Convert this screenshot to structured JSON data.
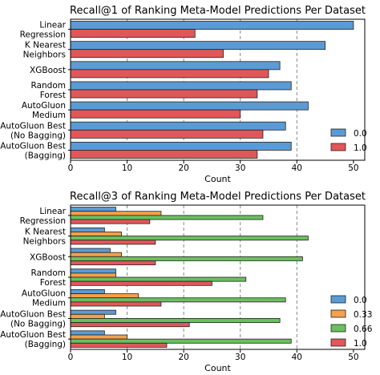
{
  "chart_data": [
    {
      "type": "bar",
      "orientation": "horizontal",
      "title": "Recall@1 of Ranking Meta-Model Predictions Per Dataset",
      "xlabel": "Count",
      "ylabel": "",
      "xlim": [
        0,
        52
      ],
      "xticks": [
        0,
        10,
        20,
        30,
        40,
        50
      ],
      "grid": "x dashed at 10,20,30,40",
      "legend_position": "lower-right",
      "categories": [
        [
          "Linear",
          "Regression"
        ],
        [
          "K Nearest",
          "Neighbors"
        ],
        [
          "XGBoost"
        ],
        [
          "Random",
          "Forest"
        ],
        [
          "AutoGluon",
          "Medium"
        ],
        [
          "AutoGluon Best",
          "(No Bagging)"
        ],
        [
          "AutoGluon Best",
          "(Bagging)"
        ]
      ],
      "series": [
        {
          "name": "0.0",
          "color": "#5b9bd5",
          "values": [
            50,
            45,
            37,
            39,
            42,
            38,
            39
          ]
        },
        {
          "name": "1.0",
          "color": "#e15759",
          "values": [
            22,
            27,
            35,
            33,
            30,
            34,
            33
          ]
        }
      ]
    },
    {
      "type": "bar",
      "orientation": "horizontal",
      "title": "Recall@3 of Ranking Meta-Model Predictions Per Dataset",
      "xlabel": "Count",
      "ylabel": "",
      "xlim": [
        0,
        52
      ],
      "xticks": [
        0,
        10,
        20,
        30,
        40,
        50
      ],
      "grid": "x dashed at 10,20,30,40",
      "legend_position": "lower-right",
      "categories": [
        [
          "Linear",
          "Regression"
        ],
        [
          "K Nearest",
          "Neighbors"
        ],
        [
          "XGBoost"
        ],
        [
          "Random",
          "Forest"
        ],
        [
          "AutoGluon",
          "Medium"
        ],
        [
          "AutoGluon Best",
          "(No Bagging)"
        ],
        [
          "AutoGluon Best",
          "(Bagging)"
        ]
      ],
      "series": [
        {
          "name": "0.0",
          "color": "#5b9bd5",
          "values": [
            8,
            6,
            7,
            8,
            6,
            8,
            6
          ]
        },
        {
          "name": "0.33",
          "color": "#f5a04a",
          "values": [
            16,
            9,
            9,
            8,
            12,
            6,
            10
          ]
        },
        {
          "name": "0.66",
          "color": "#6abf5e",
          "values": [
            34,
            42,
            41,
            31,
            38,
            37,
            39
          ]
        },
        {
          "name": "1.0",
          "color": "#e15759",
          "values": [
            14,
            15,
            15,
            25,
            16,
            21,
            17
          ]
        }
      ]
    }
  ]
}
